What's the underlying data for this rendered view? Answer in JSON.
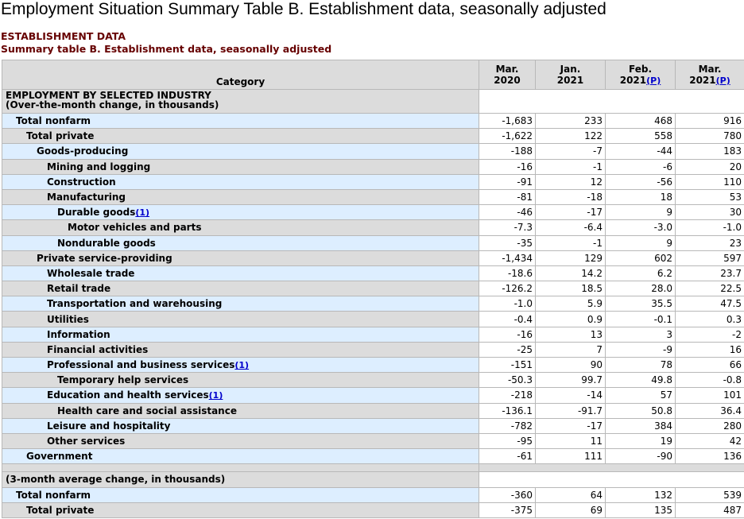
{
  "page": {
    "title": "Employment Situation Summary Table B. Establishment data, seasonally adjusted",
    "section_heading": "ESTABLISHMENT DATA",
    "table_caption": "Summary table B. Establishment data, seasonally adjusted"
  },
  "table": {
    "headers": {
      "category": "Category",
      "col1": {
        "line1": "Mar.",
        "line2": "2020",
        "mark": ""
      },
      "col2": {
        "line1": "Jan.",
        "line2": "2021",
        "mark": ""
      },
      "col3": {
        "line1": "Feb.",
        "line2": "2021",
        "mark": "(P)"
      },
      "col4": {
        "line1": "Mar.",
        "line2": "2021",
        "mark": "(P)"
      }
    },
    "group1": {
      "line1": "EMPLOYMENT BY SELECTED INDUSTRY",
      "line2": "(Over-the-month change, in thousands)"
    },
    "rows": [
      {
        "label": "Total nonfarm",
        "fn": "",
        "v": [
          "-1,683",
          "233",
          "468",
          "916"
        ]
      },
      {
        "label": "Total private",
        "fn": "",
        "v": [
          "-1,622",
          "122",
          "558",
          "780"
        ]
      },
      {
        "label": "Goods-producing",
        "fn": "",
        "v": [
          "-188",
          "-7",
          "-44",
          "183"
        ]
      },
      {
        "label": "Mining and logging",
        "fn": "",
        "v": [
          "-16",
          "-1",
          "-6",
          "20"
        ]
      },
      {
        "label": "Construction",
        "fn": "",
        "v": [
          "-91",
          "12",
          "-56",
          "110"
        ]
      },
      {
        "label": "Manufacturing",
        "fn": "",
        "v": [
          "-81",
          "-18",
          "18",
          "53"
        ]
      },
      {
        "label": "Durable goods",
        "fn": "(1)",
        "v": [
          "-46",
          "-17",
          "9",
          "30"
        ]
      },
      {
        "label": "Motor vehicles and parts",
        "fn": "",
        "v": [
          "-7.3",
          "-6.4",
          "-3.0",
          "-1.0"
        ]
      },
      {
        "label": "Nondurable goods",
        "fn": "",
        "v": [
          "-35",
          "-1",
          "9",
          "23"
        ]
      },
      {
        "label": "Private service-providing",
        "fn": "",
        "v": [
          "-1,434",
          "129",
          "602",
          "597"
        ]
      },
      {
        "label": "Wholesale trade",
        "fn": "",
        "v": [
          "-18.6",
          "14.2",
          "6.2",
          "23.7"
        ]
      },
      {
        "label": "Retail trade",
        "fn": "",
        "v": [
          "-126.2",
          "18.5",
          "28.0",
          "22.5"
        ]
      },
      {
        "label": "Transportation and warehousing",
        "fn": "",
        "v": [
          "-1.0",
          "5.9",
          "35.5",
          "47.5"
        ]
      },
      {
        "label": "Utilities",
        "fn": "",
        "v": [
          "-0.4",
          "0.9",
          "-0.1",
          "0.3"
        ]
      },
      {
        "label": "Information",
        "fn": "",
        "v": [
          "-16",
          "13",
          "3",
          "-2"
        ]
      },
      {
        "label": "Financial activities",
        "fn": "",
        "v": [
          "-25",
          "7",
          "-9",
          "16"
        ]
      },
      {
        "label": "Professional and business services",
        "fn": "(1)",
        "v": [
          "-151",
          "90",
          "78",
          "66"
        ]
      },
      {
        "label": "Temporary help services",
        "fn": "",
        "v": [
          "-50.3",
          "99.7",
          "49.8",
          "-0.8"
        ]
      },
      {
        "label": "Education and health services",
        "fn": "(1)",
        "v": [
          "-218",
          "-14",
          "57",
          "101"
        ]
      },
      {
        "label": "Health care and social assistance",
        "fn": "",
        "v": [
          "-136.1",
          "-91.7",
          "50.8",
          "36.4"
        ]
      },
      {
        "label": "Leisure and hospitality",
        "fn": "",
        "v": [
          "-782",
          "-17",
          "384",
          "280"
        ]
      },
      {
        "label": "Other services",
        "fn": "",
        "v": [
          "-95",
          "11",
          "19",
          "42"
        ]
      },
      {
        "label": "Government",
        "fn": "",
        "v": [
          "-61",
          "111",
          "-90",
          "136"
        ]
      }
    ],
    "group2": {
      "line1": "(3-month average change, in thousands)"
    },
    "rows2": [
      {
        "label": "Total nonfarm",
        "v": [
          "-360",
          "64",
          "132",
          "539"
        ]
      },
      {
        "label": "Total private",
        "v": [
          "-375",
          "69",
          "135",
          "487"
        ]
      }
    ]
  }
}
